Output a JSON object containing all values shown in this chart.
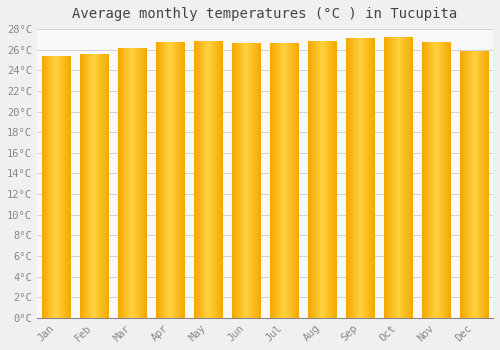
{
  "title": "Average monthly temperatures (°C ) in Tucupita",
  "months": [
    "Jan",
    "Feb",
    "Mar",
    "Apr",
    "May",
    "Jun",
    "Jul",
    "Aug",
    "Sep",
    "Oct",
    "Nov",
    "Dec"
  ],
  "values": [
    25.4,
    25.6,
    26.2,
    26.7,
    26.8,
    26.6,
    26.6,
    26.8,
    27.1,
    27.2,
    26.7,
    25.9
  ],
  "bar_color_center": "#FFD040",
  "bar_color_edge": "#F5A800",
  "ylim": [
    0,
    28
  ],
  "ytick_step": 2,
  "background_color": "#f0f0f0",
  "plot_background": "#f8f8f8",
  "grid_color": "#cccccc",
  "title_fontsize": 10,
  "tick_fontsize": 7.5,
  "font_family": "monospace"
}
